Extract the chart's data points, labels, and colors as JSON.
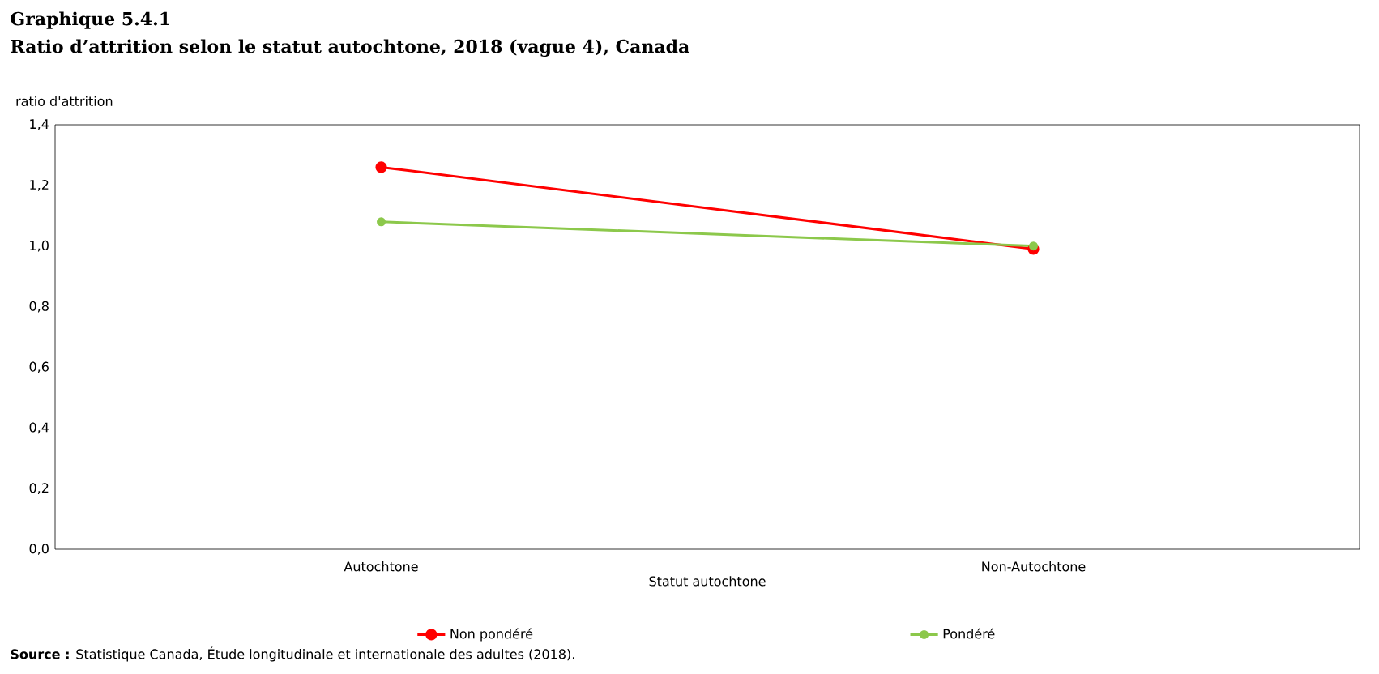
{
  "chart_data": {
    "type": "line",
    "title": "Graphique 5.4.1",
    "subtitle": "Ratio d’attrition selon le statut autochtone, 2018 (vague 4), Canada",
    "ylabel": "ratio d'attrition",
    "xlabel": "Statut autochtone",
    "categories": [
      "Autochtone",
      "Non-Autochtone"
    ],
    "series": [
      {
        "name": "Non pondéré",
        "color": "#ff0000",
        "values": [
          1.26,
          0.99
        ]
      },
      {
        "name": "Pondéré",
        "color": "#8cc84b",
        "values": [
          1.08,
          1.0
        ]
      }
    ],
    "ylim": [
      0,
      1.4
    ],
    "yticks": [
      {
        "value": 0,
        "label": "0,0"
      },
      {
        "value": 0.2,
        "label": "0,2"
      },
      {
        "value": 0.4,
        "label": "0,4"
      },
      {
        "value": 0.6,
        "label": "0,6"
      },
      {
        "value": 0.8,
        "label": "0,8"
      },
      {
        "value": 1.0,
        "label": "1,0"
      },
      {
        "value": 1.2,
        "label": "1,2"
      },
      {
        "value": 1.4,
        "label": "1,4"
      }
    ],
    "grid": false,
    "legend": "bottom",
    "marker": "circle",
    "line_style": "solid",
    "annotations": [
      "**Source :** Statistique Canada, Étude longitudinale et internationale des adultes (2018)."
    ]
  }
}
